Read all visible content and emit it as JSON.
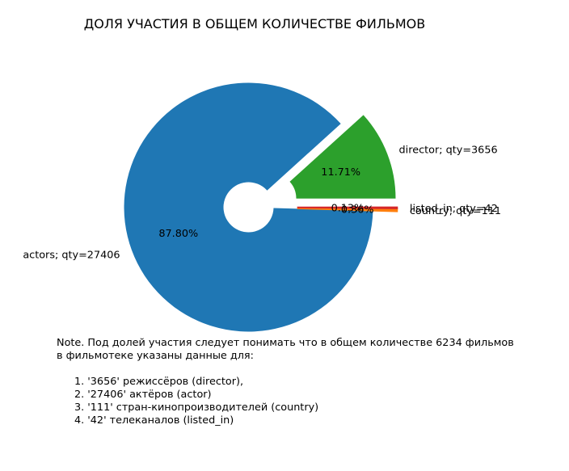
{
  "chart_data": {
    "type": "pie",
    "title": "ДОЛЯ УЧАСТИЯ В ОБЩЕМ КОЛИЧЕСТВЕ ФИЛЬМОВ",
    "slices": [
      {
        "name": "director",
        "value": 3656,
        "label": "director; qty=3656",
        "pct_label": "11.71%",
        "color": "#2ca02c",
        "exploded": true
      },
      {
        "name": "actors",
        "value": 27406,
        "label": "actors; qty=27406",
        "pct_label": "87.80%",
        "color": "#1f77b4",
        "exploded": false
      },
      {
        "name": "country",
        "value": 111,
        "label": "country; qty=111",
        "pct_label": "0.36%",
        "color": "#ff7f0e",
        "exploded": true
      },
      {
        "name": "listed_in",
        "value": 42,
        "label": "listed_in; qty=42",
        "pct_label": "0.13%",
        "color": "#d62728",
        "exploded": true
      }
    ],
    "donut_hole": true
  },
  "note": {
    "intro_line1": "Note. Под долей участия следует понимать что в общем количестве 6234 фильмов",
    "intro_line2": "в фильмотеке указаны данные для:",
    "items": [
      "1. '3656' режиссёров (director),",
      "2. '27406' актёров (actor)",
      "3. '111' стран-кинопроизводителей (country)",
      "4. '42' телеканалов (listed_in)"
    ]
  }
}
